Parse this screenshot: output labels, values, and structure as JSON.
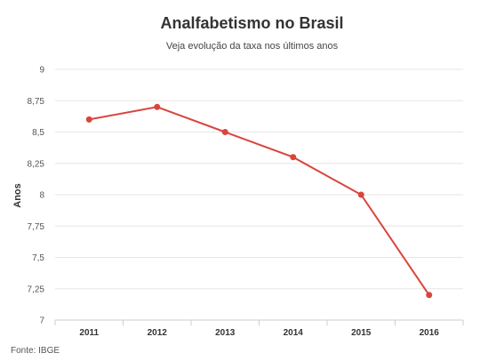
{
  "title": "Analfabetismo no Brasil",
  "subtitle": "Veja evolução da taxa nos últimos anos",
  "source": "Fonte: IBGE",
  "chart_data": {
    "type": "line",
    "title": "Analfabetismo no Brasil",
    "subtitle": "Veja evolução da taxa nos últimos anos",
    "xlabel": "",
    "ylabel": "Anos",
    "categories": [
      "2011",
      "2012",
      "2013",
      "2014",
      "2015",
      "2016"
    ],
    "series": [
      {
        "values": [
          8.6,
          8.7,
          8.5,
          8.3,
          8.0,
          7.2
        ],
        "color": "#d9453d"
      }
    ],
    "ylim": [
      7,
      9
    ],
    "yticks": [
      7,
      7.25,
      7.5,
      7.75,
      8,
      8.25,
      8.5,
      8.75,
      9
    ],
    "ytick_labels": [
      "7",
      "7,25",
      "7,5",
      "7,75",
      "8",
      "8,25",
      "8,5",
      "8,75",
      "9"
    ],
    "grid": true,
    "legend": "none"
  }
}
